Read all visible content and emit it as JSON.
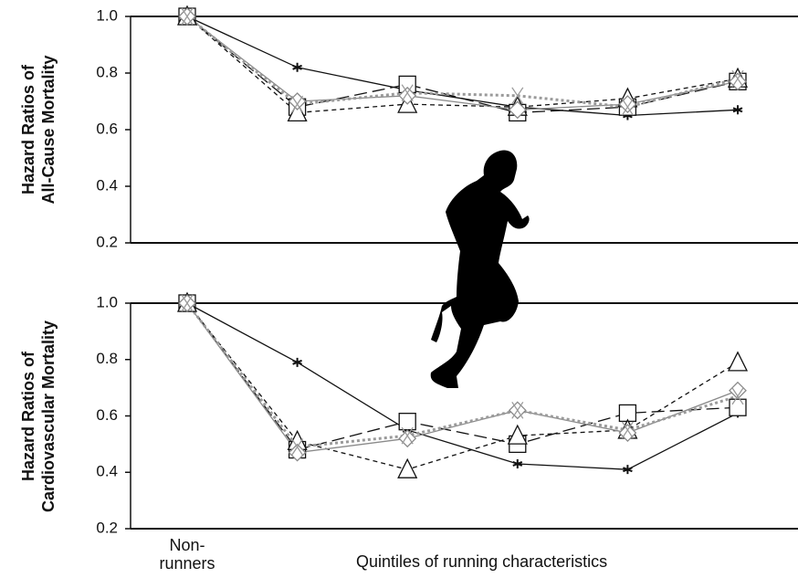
{
  "chart_data": [
    {
      "type": "line",
      "ylabel": "Hazard Ratios of\nAll-Cause Mortality",
      "categories": [
        null,
        null,
        null,
        null,
        null,
        null
      ],
      "ylim": [
        0.2,
        1
      ],
      "yticks": [
        0.2,
        0.4,
        0.6,
        0.8,
        {
          "value": 1,
          "label": "1.0"
        }
      ],
      "series": [
        {
          "marker": "star",
          "dash": "solid",
          "color": "#111111",
          "values": [
            1,
            0.82,
            0.74,
            0.68,
            0.65,
            0.67
          ]
        },
        {
          "marker": "square",
          "dash": "long",
          "color": "#111111",
          "values": [
            1,
            0.68,
            0.76,
            0.66,
            0.68,
            0.77
          ]
        },
        {
          "marker": "triangle",
          "dash": "short",
          "color": "#111111",
          "values": [
            1,
            0.66,
            0.69,
            0.68,
            0.71,
            0.78
          ]
        },
        {
          "marker": "diamond",
          "dash": "solid",
          "color": "#8a8a8a",
          "values": [
            1,
            0.7,
            0.72,
            0.67,
            0.69,
            0.77
          ]
        },
        {
          "marker": "x",
          "dash": "dotted",
          "color": "#9a9a9a",
          "values": [
            1,
            0.69,
            0.73,
            0.72,
            0.68,
            0.78
          ]
        }
      ]
    },
    {
      "type": "line",
      "ylabel": "Hazard Ratios of\nCardiovascular Mortality",
      "xlabel": "Quintiles of running characteristics",
      "categories": [
        "Non-\nrunners",
        null,
        null,
        null,
        null,
        null
      ],
      "ylim": [
        0.2,
        1
      ],
      "yticks": [
        0.2,
        0.4,
        0.6,
        0.8,
        {
          "value": 1,
          "label": "1.0"
        }
      ],
      "series": [
        {
          "marker": "star",
          "dash": "solid",
          "color": "#111111",
          "values": [
            1,
            0.79,
            0.55,
            0.43,
            0.41,
            0.61
          ]
        },
        {
          "marker": "square",
          "dash": "long",
          "color": "#111111",
          "values": [
            1,
            0.48,
            0.58,
            0.5,
            0.61,
            0.63
          ]
        },
        {
          "marker": "triangle",
          "dash": "short",
          "color": "#111111",
          "values": [
            1,
            0.51,
            0.41,
            0.53,
            0.55,
            0.79
          ]
        },
        {
          "marker": "diamond",
          "dash": "solid",
          "color": "#8a8a8a",
          "values": [
            1,
            0.47,
            0.52,
            0.62,
            0.54,
            0.69
          ]
        },
        {
          "marker": "x",
          "dash": "dotted",
          "color": "#9a9a9a",
          "values": [
            1,
            0.49,
            0.53,
            0.62,
            0.55,
            0.67
          ]
        }
      ]
    }
  ]
}
